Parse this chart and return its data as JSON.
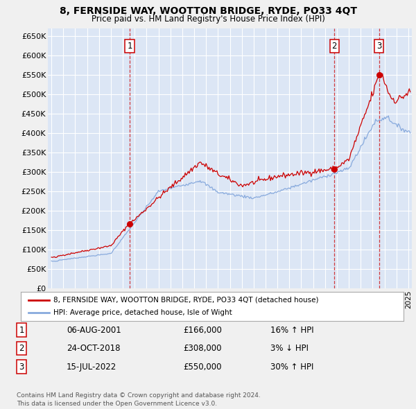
{
  "title": "8, FERNSIDE WAY, WOOTTON BRIDGE, RYDE, PO33 4QT",
  "subtitle": "Price paid vs. HM Land Registry's House Price Index (HPI)",
  "background_color": "#f0f0f0",
  "plot_bg_color": "#dce6f5",
  "grid_color": "#ffffff",
  "line_color_red": "#cc0000",
  "line_color_blue": "#88aadd",
  "sale_marker_color": "#cc0000",
  "ylim": [
    0,
    670000
  ],
  "yticks": [
    0,
    50000,
    100000,
    150000,
    200000,
    250000,
    300000,
    350000,
    400000,
    450000,
    500000,
    550000,
    600000,
    650000
  ],
  "xlim_start": 1994.7,
  "xlim_end": 2025.3,
  "sales": [
    {
      "label": "1",
      "date": "06-AUG-2001",
      "year": 2001.58,
      "price": 166000,
      "hpi_pct": "16% ↑ HPI"
    },
    {
      "label": "2",
      "date": "24-OCT-2018",
      "year": 2018.79,
      "price": 308000,
      "hpi_pct": "3% ↓ HPI"
    },
    {
      "label": "3",
      "date": "15-JUL-2022",
      "year": 2022.54,
      "price": 550000,
      "hpi_pct": "30% ↑ HPI"
    }
  ],
  "legend_label_red": "8, FERNSIDE WAY, WOOTTON BRIDGE, RYDE, PO33 4QT (detached house)",
  "legend_label_blue": "HPI: Average price, detached house, Isle of Wight",
  "footnote": "Contains HM Land Registry data © Crown copyright and database right 2024.\nThis data is licensed under the Open Government Licence v3.0."
}
